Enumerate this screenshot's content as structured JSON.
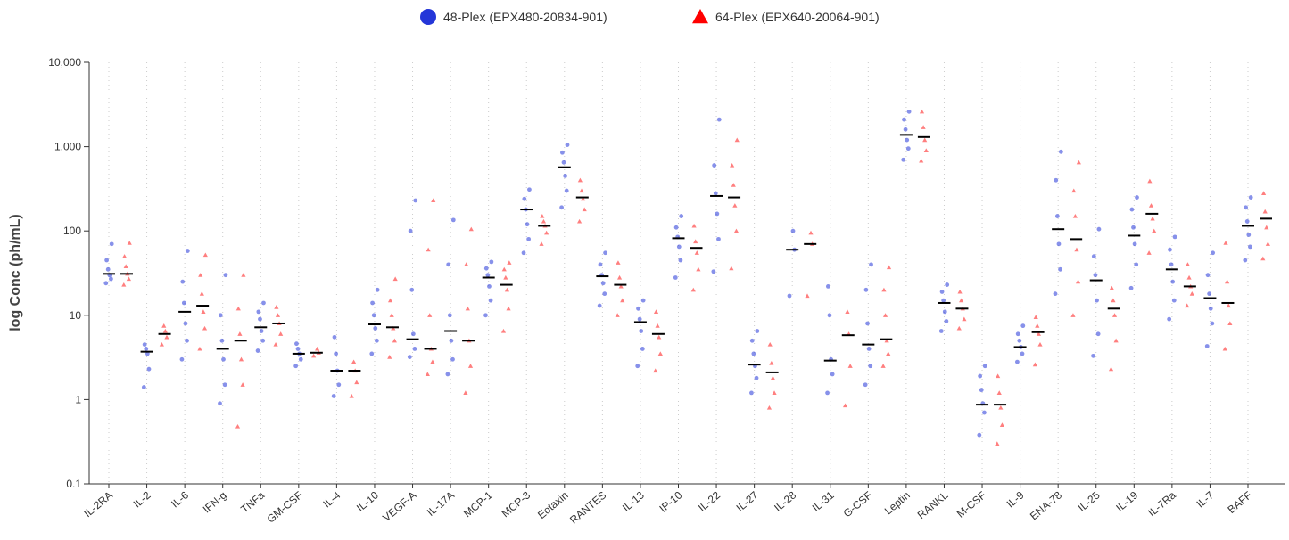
{
  "chart_data": {
    "type": "strip",
    "ylabel": "log Conc (ph/mL)",
    "yscale": "log",
    "ylim": [
      0.1,
      10000
    ],
    "yticks": [
      0.1,
      1,
      10,
      100,
      {
        "value": 1000,
        "label": "1,000"
      },
      {
        "value": 10000,
        "label": "10,000"
      }
    ],
    "grid": true,
    "categories": [
      "IL-2RA",
      "IL-2",
      "IL-6",
      "IFN-g",
      "TNFa",
      "GM-CSF",
      "IL-4",
      "IL-10",
      "VEGF-A",
      "IL-17A",
      "MCP-1",
      "MCP-3",
      "Eotaxin",
      "RANTES",
      "IL-13",
      "IP-10",
      "IL-22",
      "IL-27",
      "IL-28",
      "IL-31",
      "G-CSF",
      "Leptin",
      "RANKL",
      "M-CSF",
      "IL-9",
      "ENA-78",
      "IL-25",
      "IL-19",
      "IL-7Ra",
      "IL-7",
      "BAFF"
    ],
    "series": [
      {
        "name": "48-Plex (EPX480-20834-901)",
        "color": "#2436d8",
        "marker": "circle",
        "medians": [
          31,
          3.7,
          11,
          4,
          7.2,
          3.5,
          2.2,
          7.8,
          5.2,
          6.5,
          28,
          180,
          570,
          29,
          8.3,
          82,
          260,
          2.6,
          60,
          2.9,
          4.5,
          1380,
          14,
          0.87,
          4.2,
          105,
          26,
          88,
          35,
          16,
          115
        ],
        "points": [
          [
            24,
            27,
            30,
            35,
            45,
            70
          ],
          [
            1.4,
            2.3,
            3.5,
            4,
            4.5
          ],
          [
            3,
            5,
            8,
            14,
            25,
            58
          ],
          [
            0.9,
            1.5,
            3,
            5,
            10,
            30
          ],
          [
            3.8,
            5,
            6.5,
            9,
            11,
            14
          ],
          [
            2.5,
            3,
            3.5,
            4,
            4.6
          ],
          [
            1.1,
            1.5,
            2.2,
            3.5,
            5.5
          ],
          [
            3.5,
            5,
            7,
            10,
            14,
            20
          ],
          [
            3.2,
            4,
            6,
            20,
            100,
            230
          ],
          [
            2,
            3,
            5,
            10,
            40,
            135
          ],
          [
            10,
            15,
            22,
            30,
            36,
            43
          ],
          [
            55,
            80,
            120,
            180,
            240,
            310
          ],
          [
            190,
            300,
            450,
            650,
            850,
            1050
          ],
          [
            13,
            18,
            24,
            30,
            40,
            55
          ],
          [
            2.5,
            4,
            6.5,
            9,
            12,
            15
          ],
          [
            28,
            45,
            65,
            85,
            110,
            150
          ],
          [
            33,
            80,
            160,
            280,
            600,
            2100
          ],
          [
            1.2,
            1.8,
            2.5,
            3.5,
            5,
            6.5
          ],
          [
            17,
            60,
            100
          ],
          [
            1.2,
            2,
            3,
            10,
            22
          ],
          [
            1.5,
            2.5,
            4,
            8,
            20,
            40
          ],
          [
            700,
            950,
            1200,
            1600,
            2100,
            2600
          ],
          [
            6.5,
            8.5,
            11,
            15,
            19,
            23
          ],
          [
            0.38,
            0.7,
            0.9,
            1.3,
            1.9,
            2.5
          ],
          [
            2.8,
            3.5,
            4.2,
            5,
            6,
            7.5
          ],
          [
            18,
            35,
            70,
            150,
            400,
            870
          ],
          [
            3.3,
            6,
            15,
            30,
            50,
            105
          ],
          [
            21,
            40,
            70,
            110,
            180,
            250
          ],
          [
            9,
            15,
            25,
            40,
            60,
            85
          ],
          [
            4.3,
            8,
            12,
            18,
            30,
            55
          ],
          [
            45,
            65,
            90,
            130,
            190,
            250
          ]
        ]
      },
      {
        "name": "64-Plex (EPX640-20064-901)",
        "color": "#ff0000",
        "marker": "triangle",
        "medians": [
          31,
          6,
          13,
          5,
          8,
          3.6,
          2.2,
          7.2,
          4,
          5,
          23,
          115,
          250,
          23,
          6,
          63,
          250,
          2.1,
          70,
          5.8,
          5.2,
          1300,
          12,
          0.87,
          6.3,
          80,
          12,
          160,
          22,
          14,
          140
        ],
        "points": [
          [
            23,
            27,
            31,
            38,
            50,
            72
          ],
          [
            4.5,
            5.5,
            6.5,
            7.5
          ],
          [
            4,
            7,
            11,
            18,
            30,
            52
          ],
          [
            0.48,
            1.5,
            3,
            6,
            12,
            30
          ],
          [
            4.5,
            6,
            8,
            10,
            12.5
          ],
          [
            3.3,
            3.6,
            4
          ],
          [
            1.1,
            1.6,
            2.2,
            2.8
          ],
          [
            3.2,
            5,
            7,
            10,
            15,
            27
          ],
          [
            2,
            2.8,
            4,
            10,
            60,
            230
          ],
          [
            1.2,
            2.5,
            5,
            12,
            40,
            105
          ],
          [
            6.5,
            12,
            20,
            28,
            35,
            42
          ],
          [
            70,
            95,
            115,
            130,
            150
          ],
          [
            130,
            180,
            240,
            300,
            400
          ],
          [
            10,
            15,
            22,
            28,
            42
          ],
          [
            2.2,
            3.5,
            5.5,
            7.5,
            11
          ],
          [
            20,
            35,
            55,
            75,
            115
          ],
          [
            36,
            100,
            200,
            350,
            600,
            1200
          ],
          [
            0.8,
            1.2,
            1.8,
            2.7,
            4.5
          ],
          [
            17,
            70,
            95
          ],
          [
            0.85,
            2.5,
            6,
            11
          ],
          [
            2.5,
            3.5,
            5,
            10,
            20,
            37
          ],
          [
            680,
            900,
            1200,
            1700,
            2600
          ],
          [
            7,
            9,
            12,
            15,
            19
          ],
          [
            0.3,
            0.5,
            0.8,
            1.2,
            1.9
          ],
          [
            2.6,
            4.5,
            6,
            7.5,
            9.5
          ],
          [
            10,
            25,
            60,
            150,
            300,
            650
          ],
          [
            2.3,
            5,
            10,
            15,
            21
          ],
          [
            55,
            100,
            140,
            200,
            390
          ],
          [
            13,
            18,
            22,
            28,
            40
          ],
          [
            4,
            8,
            13,
            25,
            72
          ],
          [
            47,
            70,
            110,
            170,
            280
          ]
        ]
      }
    ]
  }
}
